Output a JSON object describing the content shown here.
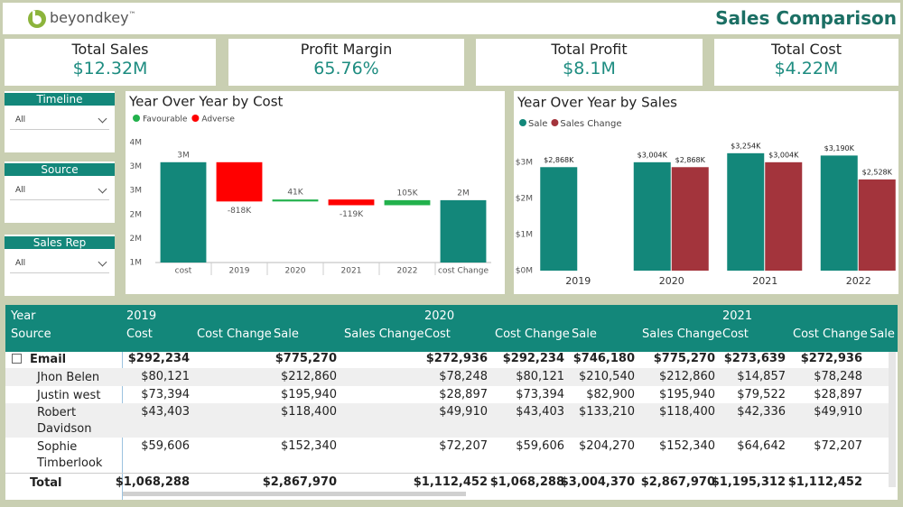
{
  "header": {
    "logo": "beyondkey",
    "logo_mark": "™",
    "title": "Sales Comparison"
  },
  "kpis": [
    {
      "label": "Total Sales",
      "value": "$12.32M"
    },
    {
      "label": "Profit Margin",
      "value": "65.76%"
    },
    {
      "label": "Total Profit",
      "value": "$8.1M"
    },
    {
      "label": "Total Cost",
      "value": "$4.22M"
    }
  ],
  "slicers": [
    {
      "label": "Timeline",
      "selection": "All"
    },
    {
      "label": "Source",
      "selection": "All"
    },
    {
      "label": "Sales Rep",
      "selection": "All"
    }
  ],
  "chart_data": [
    {
      "type": "waterfall",
      "title": "Year Over Year by Cost",
      "categories": [
        "cost",
        "2019",
        "2020",
        "2021",
        "2022",
        "cost Change"
      ],
      "values": [
        3090000,
        -818000,
        41000,
        -119000,
        105000,
        2299000
      ],
      "value_labels": [
        "3M",
        "-818K",
        "41K",
        "-119K",
        "105K",
        "2M"
      ],
      "legend": [
        {
          "name": "Favourable",
          "color": "#22b14c"
        },
        {
          "name": "Adverse",
          "color": "#ff0000"
        }
      ],
      "total_color": "#13877a",
      "ylim": [
        1000000,
        3500000
      ],
      "yticks": [
        {
          "value": 1000000,
          "label": "1M"
        },
        {
          "value": 1500000,
          "label": "2M"
        },
        {
          "value": 2000000,
          "label": "2M"
        },
        {
          "value": 2500000,
          "label": "3M"
        },
        {
          "value": 3000000,
          "label": "3M"
        },
        {
          "value": 3500000,
          "label": "4M"
        }
      ],
      "grid": false
    },
    {
      "type": "bar",
      "title": "Year Over Year by Sales",
      "categories": [
        "2019",
        "2020",
        "2021",
        "2022"
      ],
      "series": [
        {
          "name": "Sale",
          "color": "#13877a",
          "values": [
            2868000,
            3004000,
            3254000,
            3190000
          ],
          "value_labels": [
            "$2,868K",
            "$3,004K",
            "$3,254K",
            "$3,190K"
          ]
        },
        {
          "name": "Sales Change",
          "color": "#a3343c",
          "values": [
            null,
            2868000,
            3004000,
            2528000
          ],
          "value_labels": [
            null,
            "$2,868K",
            "$3,004K",
            "$2,528K"
          ]
        }
      ],
      "ylim": [
        0,
        3400000
      ],
      "yticks": [
        {
          "value": 0,
          "label": "$0M"
        },
        {
          "value": 1000000,
          "label": "$1M"
        },
        {
          "value": 2000000,
          "label": "$2M"
        },
        {
          "value": 3000000,
          "label": "$3M"
        }
      ],
      "grid": false
    }
  ],
  "table": {
    "row_header_labels": [
      "Year",
      "Source"
    ],
    "years": [
      "2019",
      "2020",
      "2021"
    ],
    "columns": [
      "Cost",
      "Cost Change",
      "Sale",
      "Sales Change",
      "Cost",
      "Cost Change",
      "Sale",
      "Sales Change",
      "Cost",
      "Cost Change",
      "Sale"
    ],
    "rows": [
      {
        "name": "Email",
        "cells": [
          "$292,234",
          null,
          "$775,270",
          null,
          "$272,936",
          "$292,234",
          "$746,180",
          "$775,270",
          "$273,639",
          "$272,936",
          null
        ]
      },
      {
        "name": "Jhon Belen",
        "cells": [
          "$80,121",
          null,
          "$212,860",
          null,
          "$78,248",
          "$80,121",
          "$210,540",
          "$212,860",
          "$14,857",
          "$78,248",
          null
        ]
      },
      {
        "name": "Justin west",
        "cells": [
          "$73,394",
          null,
          "$195,940",
          null,
          "$28,897",
          "$73,394",
          "$82,900",
          "$195,940",
          "$79,522",
          "$28,897",
          null
        ]
      },
      {
        "name": "Robert Davidson",
        "cells": [
          "$43,403",
          null,
          "$118,400",
          null,
          "$49,910",
          "$43,403",
          "$133,210",
          "$118,400",
          "$42,336",
          "$49,910",
          null
        ]
      },
      {
        "name": "Sophie Timberlook",
        "cells": [
          "$59,606",
          null,
          "$152,340",
          null,
          "$72,207",
          "$59,606",
          "$204,270",
          "$152,340",
          "$64,642",
          "$72,207",
          null
        ]
      },
      {
        "name": "Total",
        "cells": [
          "$1,068,288",
          null,
          "$2,867,970",
          null,
          "$1,112,452",
          "$1,068,288",
          "$3,004,370",
          "$2,867,970",
          "$1,195,312",
          "$1,112,452",
          null
        ]
      }
    ]
  }
}
